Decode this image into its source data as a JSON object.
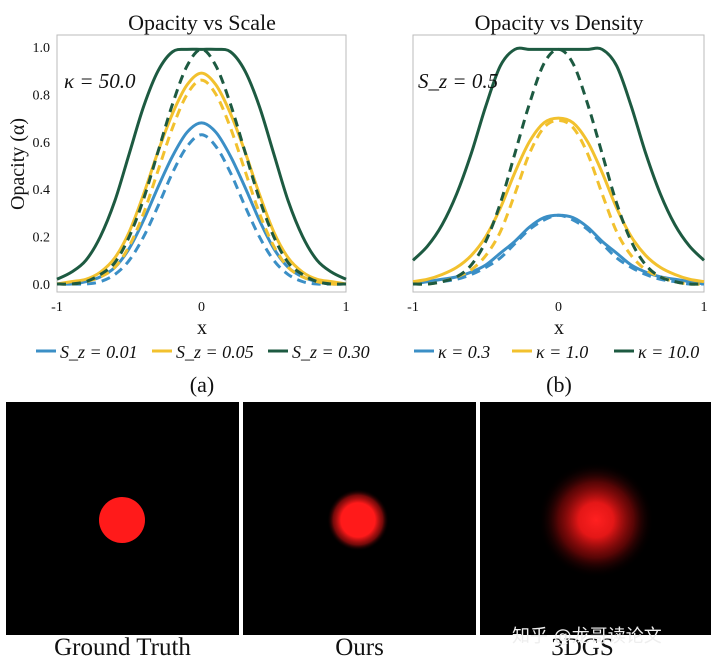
{
  "chart_data": [
    {
      "type": "line",
      "panel": "(a)",
      "title": "Opacity vs Scale",
      "xlabel": "x",
      "ylabel": "Opacity (α)",
      "xlim": [
        -1,
        1
      ],
      "ylim": [
        0,
        1
      ],
      "xticks": [
        "-1",
        "0",
        "1"
      ],
      "yticks": [
        "0.0",
        "0.2",
        "0.4",
        "0.6",
        "0.8",
        "1.0"
      ],
      "annotation": "κ = 50.0",
      "legend_position": "bottom",
      "legend": [
        "S_z = 0.01",
        "S_z = 0.05",
        "S_z = 0.30"
      ],
      "series": [
        {
          "name": "S_z = 0.01",
          "color": "#3b8fc6",
          "style": "solid",
          "x": [
            -1,
            -0.9,
            -0.8,
            -0.7,
            -0.6,
            -0.5,
            -0.4,
            -0.3,
            -0.2,
            -0.1,
            0,
            0.1,
            0.2,
            0.3,
            0.4,
            0.5,
            0.6,
            0.7,
            0.8,
            0.9,
            1
          ],
          "y": [
            0,
            0,
            0.01,
            0.03,
            0.07,
            0.15,
            0.27,
            0.41,
            0.54,
            0.64,
            0.68,
            0.64,
            0.54,
            0.41,
            0.27,
            0.15,
            0.07,
            0.03,
            0.01,
            0,
            0
          ]
        },
        {
          "name": "S_z = 0.01",
          "color": "#3b8fc6",
          "style": "dashed",
          "x": [
            -1,
            -0.9,
            -0.8,
            -0.7,
            -0.6,
            -0.5,
            -0.4,
            -0.3,
            -0.2,
            -0.1,
            0,
            0.1,
            0.2,
            0.3,
            0.4,
            0.5,
            0.6,
            0.7,
            0.8,
            0.9,
            1
          ],
          "y": [
            0,
            0,
            0,
            0.01,
            0.04,
            0.1,
            0.2,
            0.33,
            0.47,
            0.58,
            0.63,
            0.58,
            0.47,
            0.33,
            0.2,
            0.1,
            0.04,
            0.01,
            0,
            0,
            0
          ]
        },
        {
          "name": "S_z = 0.05",
          "color": "#f2c12e",
          "style": "solid",
          "x": [
            -1,
            -0.9,
            -0.8,
            -0.7,
            -0.6,
            -0.5,
            -0.4,
            -0.3,
            -0.2,
            -0.1,
            0,
            0.1,
            0.2,
            0.3,
            0.4,
            0.5,
            0.6,
            0.7,
            0.8,
            0.9,
            1
          ],
          "y": [
            0,
            0.01,
            0.02,
            0.05,
            0.11,
            0.22,
            0.38,
            0.56,
            0.72,
            0.84,
            0.89,
            0.84,
            0.72,
            0.56,
            0.38,
            0.22,
            0.11,
            0.05,
            0.02,
            0.01,
            0
          ]
        },
        {
          "name": "S_z = 0.05",
          "color": "#f2c12e",
          "style": "dashed",
          "x": [
            -1,
            -0.9,
            -0.8,
            -0.7,
            -0.6,
            -0.5,
            -0.4,
            -0.3,
            -0.2,
            -0.1,
            0,
            0.1,
            0.2,
            0.3,
            0.4,
            0.5,
            0.6,
            0.7,
            0.8,
            0.9,
            1
          ],
          "y": [
            0,
            0,
            0.01,
            0.03,
            0.07,
            0.16,
            0.3,
            0.48,
            0.66,
            0.8,
            0.86,
            0.8,
            0.66,
            0.48,
            0.3,
            0.16,
            0.07,
            0.03,
            0.01,
            0,
            0
          ]
        },
        {
          "name": "S_z = 0.30",
          "color": "#1d5a41",
          "style": "solid",
          "x": [
            -1,
            -0.9,
            -0.8,
            -0.7,
            -0.6,
            -0.5,
            -0.4,
            -0.3,
            -0.2,
            -0.1,
            0,
            0.1,
            0.2,
            0.3,
            0.4,
            0.5,
            0.6,
            0.7,
            0.8,
            0.9,
            1
          ],
          "y": [
            0.02,
            0.05,
            0.1,
            0.2,
            0.35,
            0.55,
            0.75,
            0.9,
            0.98,
            0.99,
            0.99,
            0.99,
            0.98,
            0.9,
            0.75,
            0.55,
            0.35,
            0.2,
            0.1,
            0.05,
            0.02
          ]
        },
        {
          "name": "S_z = 0.30",
          "color": "#1d5a41",
          "style": "dashed",
          "x": [
            -1,
            -0.9,
            -0.8,
            -0.7,
            -0.6,
            -0.5,
            -0.4,
            -0.3,
            -0.2,
            -0.1,
            0,
            0.1,
            0.2,
            0.3,
            0.4,
            0.5,
            0.6,
            0.7,
            0.8,
            0.9,
            1
          ],
          "y": [
            0,
            0,
            0.01,
            0.04,
            0.09,
            0.2,
            0.36,
            0.56,
            0.76,
            0.92,
            0.99,
            0.92,
            0.76,
            0.56,
            0.36,
            0.2,
            0.09,
            0.04,
            0.01,
            0,
            0
          ]
        }
      ]
    },
    {
      "type": "line",
      "panel": "(b)",
      "title": "Opacity vs Density",
      "xlabel": "x",
      "ylabel": "",
      "xlim": [
        -1,
        1
      ],
      "ylim": [
        0,
        1
      ],
      "xticks": [
        "-1",
        "0",
        "1"
      ],
      "annotation": "S_z = 0.5",
      "legend_position": "bottom",
      "legend": [
        "κ = 0.3",
        "κ = 1.0",
        "κ = 10.0"
      ],
      "series": [
        {
          "name": "κ = 0.3",
          "color": "#3b8fc6",
          "style": "solid",
          "x": [
            -1,
            -0.9,
            -0.8,
            -0.7,
            -0.6,
            -0.5,
            -0.4,
            -0.3,
            -0.2,
            -0.1,
            0,
            0.1,
            0.2,
            0.3,
            0.4,
            0.5,
            0.6,
            0.7,
            0.8,
            0.9,
            1
          ],
          "y": [
            0,
            0.01,
            0.02,
            0.03,
            0.05,
            0.08,
            0.13,
            0.18,
            0.24,
            0.28,
            0.29,
            0.28,
            0.24,
            0.18,
            0.13,
            0.08,
            0.05,
            0.03,
            0.02,
            0.01,
            0
          ]
        },
        {
          "name": "κ = 0.3",
          "color": "#3b8fc6",
          "style": "dashed",
          "x": [
            -1,
            -0.9,
            -0.8,
            -0.7,
            -0.6,
            -0.5,
            -0.4,
            -0.3,
            -0.2,
            -0.1,
            0,
            0.1,
            0.2,
            0.3,
            0.4,
            0.5,
            0.6,
            0.7,
            0.8,
            0.9,
            1
          ],
          "y": [
            0,
            0,
            0.01,
            0.02,
            0.04,
            0.07,
            0.11,
            0.17,
            0.23,
            0.27,
            0.29,
            0.27,
            0.23,
            0.17,
            0.11,
            0.07,
            0.04,
            0.02,
            0.01,
            0,
            0
          ]
        },
        {
          "name": "κ = 1.0",
          "color": "#f2c12e",
          "style": "solid",
          "x": [
            -1,
            -0.9,
            -0.8,
            -0.7,
            -0.6,
            -0.5,
            -0.4,
            -0.3,
            -0.2,
            -0.1,
            0,
            0.1,
            0.2,
            0.3,
            0.4,
            0.5,
            0.6,
            0.7,
            0.8,
            0.9,
            1
          ],
          "y": [
            0.01,
            0.02,
            0.04,
            0.07,
            0.12,
            0.2,
            0.32,
            0.47,
            0.6,
            0.68,
            0.7,
            0.68,
            0.6,
            0.47,
            0.32,
            0.2,
            0.12,
            0.07,
            0.04,
            0.02,
            0.01
          ]
        },
        {
          "name": "κ = 1.0",
          "color": "#f2c12e",
          "style": "dashed",
          "x": [
            -1,
            -0.9,
            -0.8,
            -0.7,
            -0.6,
            -0.5,
            -0.4,
            -0.3,
            -0.2,
            -0.1,
            0,
            0.1,
            0.2,
            0.3,
            0.4,
            0.5,
            0.6,
            0.7,
            0.8,
            0.9,
            1
          ],
          "y": [
            0,
            0,
            0.01,
            0.03,
            0.06,
            0.12,
            0.22,
            0.38,
            0.55,
            0.66,
            0.69,
            0.66,
            0.55,
            0.38,
            0.22,
            0.12,
            0.06,
            0.03,
            0.01,
            0,
            0
          ]
        },
        {
          "name": "κ = 10.0",
          "color": "#1d5a41",
          "style": "solid",
          "x": [
            -1,
            -0.9,
            -0.8,
            -0.7,
            -0.6,
            -0.5,
            -0.4,
            -0.3,
            -0.2,
            -0.1,
            0,
            0.1,
            0.2,
            0.3,
            0.4,
            0.5,
            0.6,
            0.7,
            0.8,
            0.9,
            1
          ],
          "y": [
            0.1,
            0.16,
            0.25,
            0.38,
            0.55,
            0.75,
            0.92,
            0.99,
            0.99,
            0.99,
            0.99,
            0.99,
            0.99,
            0.99,
            0.92,
            0.75,
            0.55,
            0.38,
            0.25,
            0.16,
            0.1
          ]
        },
        {
          "name": "κ = 10.0",
          "color": "#1d5a41",
          "style": "dashed",
          "x": [
            -1,
            -0.9,
            -0.8,
            -0.7,
            -0.6,
            -0.5,
            -0.4,
            -0.3,
            -0.2,
            -0.1,
            0,
            0.1,
            0.2,
            0.3,
            0.4,
            0.5,
            0.6,
            0.7,
            0.8,
            0.9,
            1
          ],
          "y": [
            0,
            0,
            0.01,
            0.03,
            0.08,
            0.18,
            0.34,
            0.55,
            0.76,
            0.93,
            0.99,
            0.93,
            0.76,
            0.55,
            0.34,
            0.18,
            0.08,
            0.03,
            0.01,
            0,
            0
          ]
        }
      ]
    }
  ],
  "images": [
    {
      "caption": "Ground Truth",
      "blur_level": 0
    },
    {
      "caption": "Ours",
      "blur_level": 1
    },
    {
      "caption": "3DGS",
      "blur_level": 2
    }
  ],
  "watermark": "知乎 @龙哥读论文",
  "colors": {
    "blue": "#3b8fc6",
    "yellow": "#f2c12e",
    "green": "#1d5a41",
    "red": "#ff1a1a"
  }
}
